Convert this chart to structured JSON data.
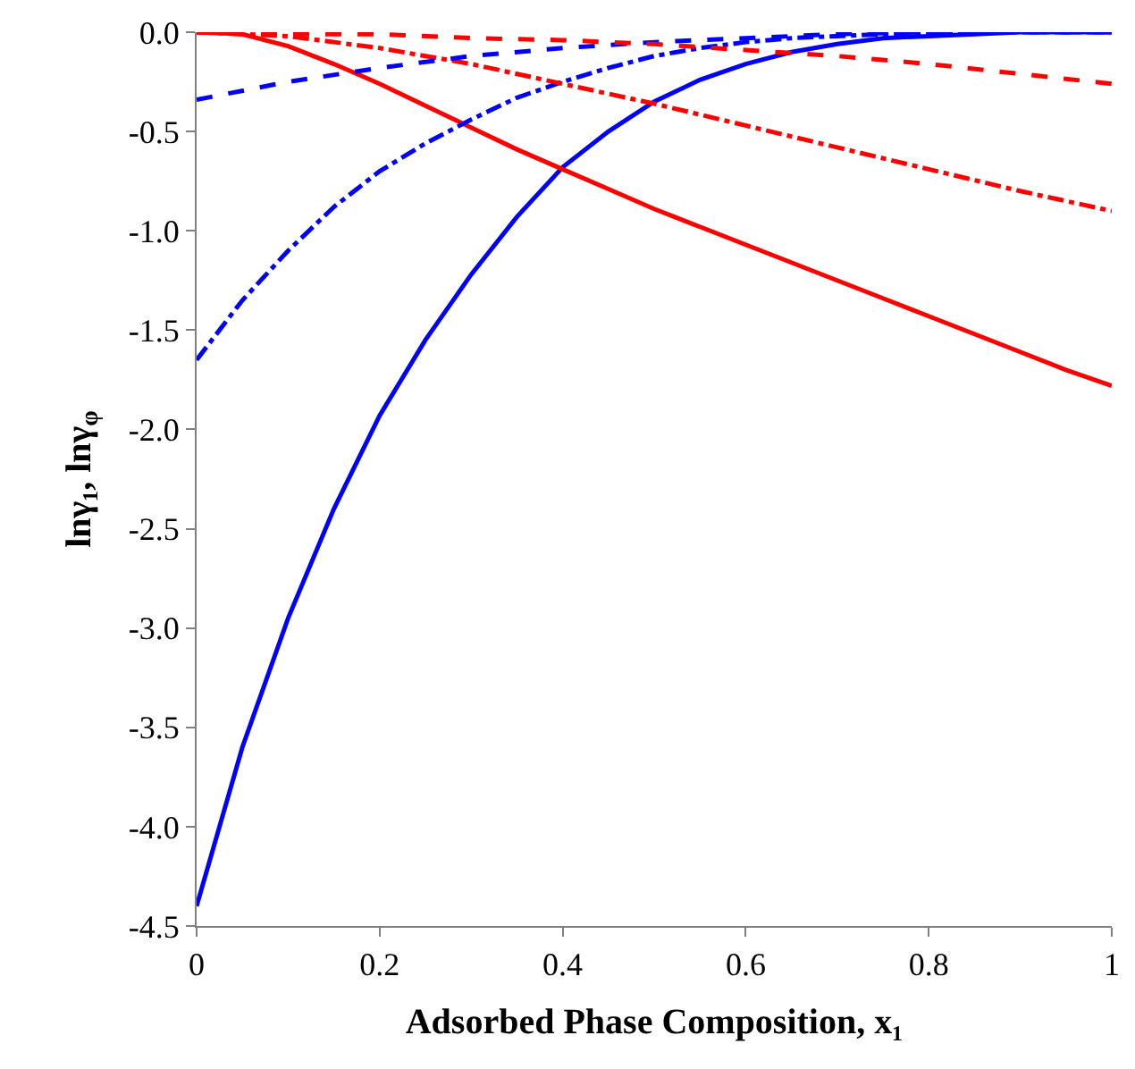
{
  "chart_data": {
    "type": "line",
    "xlabel": "Adsorbed Phase Composition, x₁",
    "ylabel": "lnγ₁, lnγ$_{φ}$",
    "xlim": [
      0,
      1
    ],
    "xticks": [
      0,
      0.2,
      0.4,
      0.6,
      0.8,
      1
    ],
    "ylim": [
      -4.5,
      0
    ],
    "yticks": [
      {
        "value": -4.5,
        "label": "-4.5"
      },
      {
        "value": -4,
        "label": "-4.0"
      },
      {
        "value": -3.5,
        "label": "-3.5"
      },
      {
        "value": -3,
        "label": "-3.0"
      },
      {
        "value": -2.5,
        "label": "-2.5"
      },
      {
        "value": -2,
        "label": "-2.0"
      },
      {
        "value": -1.5,
        "label": "-1.5"
      },
      {
        "value": -1,
        "label": "-1.0"
      },
      {
        "value": -0.5,
        "label": "-0.5"
      },
      {
        "value": 0,
        "label": "0.0"
      }
    ],
    "legend": false,
    "marker": "none",
    "series": [
      {
        "color": "#0000ff",
        "line_style": "solid",
        "x": [
          0,
          0.05,
          0.1,
          0.15,
          0.2,
          0.25,
          0.3,
          0.35,
          0.4,
          0.45,
          0.5,
          0.55,
          0.6,
          0.65,
          0.7,
          0.75,
          0.8,
          0.85,
          0.9,
          0.95,
          1
        ],
        "values": [
          -4.4,
          -3.6,
          -2.95,
          -2.4,
          -1.93,
          -1.55,
          -1.22,
          -0.93,
          -0.68,
          -0.5,
          -0.35,
          -0.24,
          -0.16,
          -0.1,
          -0.06,
          -0.03,
          -0.02,
          -0.01,
          0,
          0,
          0
        ]
      },
      {
        "color": "#ff0000",
        "line_style": "solid",
        "x": [
          0,
          0.05,
          0.1,
          0.15,
          0.2,
          0.25,
          0.3,
          0.35,
          0.4,
          0.45,
          0.5,
          0.55,
          0.6,
          0.65,
          0.7,
          0.75,
          0.8,
          0.85,
          0.9,
          0.95,
          1
        ],
        "values": [
          0,
          -0.01,
          -0.07,
          -0.16,
          -0.26,
          -0.37,
          -0.48,
          -0.59,
          -0.69,
          -0.79,
          -0.89,
          -0.98,
          -1.07,
          -1.16,
          -1.25,
          -1.34,
          -1.43,
          -1.52,
          -1.61,
          -1.7,
          -1.78
        ]
      },
      {
        "color": "#0000ff",
        "line_style": "dashdot",
        "x": [
          0,
          0.05,
          0.1,
          0.15,
          0.2,
          0.25,
          0.3,
          0.35,
          0.4,
          0.45,
          0.5,
          0.55,
          0.6,
          0.65,
          0.7,
          0.75,
          0.8,
          0.9,
          1
        ],
        "values": [
          -1.65,
          -1.35,
          -1.1,
          -0.88,
          -0.7,
          -0.56,
          -0.44,
          -0.33,
          -0.25,
          -0.18,
          -0.12,
          -0.08,
          -0.05,
          -0.03,
          -0.02,
          -0.01,
          0,
          0,
          0
        ]
      },
      {
        "color": "#ff0000",
        "line_style": "dashdot",
        "x": [
          0,
          0.1,
          0.2,
          0.3,
          0.4,
          0.5,
          0.6,
          0.7,
          0.8,
          0.9,
          1
        ],
        "values": [
          0,
          -0.02,
          -0.08,
          -0.16,
          -0.26,
          -0.36,
          -0.47,
          -0.58,
          -0.69,
          -0.8,
          -0.9
        ]
      },
      {
        "color": "#0000ff",
        "line_style": "dashed",
        "x": [
          0,
          0.1,
          0.2,
          0.3,
          0.4,
          0.5,
          0.6,
          0.7,
          0.8,
          0.9,
          1
        ],
        "values": [
          -0.34,
          -0.25,
          -0.18,
          -0.12,
          -0.08,
          -0.05,
          -0.03,
          -0.01,
          0,
          0,
          0
        ]
      },
      {
        "color": "#ff0000",
        "line_style": "dashed",
        "x": [
          0,
          0.1,
          0.2,
          0.3,
          0.4,
          0.5,
          0.6,
          0.7,
          0.8,
          0.9,
          1
        ],
        "values": [
          0,
          -0.01,
          -0.01,
          -0.03,
          -0.04,
          -0.06,
          -0.09,
          -0.12,
          -0.16,
          -0.21,
          -0.26
        ]
      }
    ]
  }
}
